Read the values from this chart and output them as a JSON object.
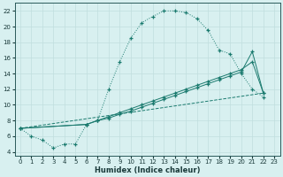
{
  "line1_x": [
    0,
    1,
    2,
    3,
    4,
    5,
    6,
    7,
    8,
    9,
    10,
    11,
    12,
    13,
    14,
    15,
    16,
    17,
    18,
    19,
    20,
    21,
    22
  ],
  "line1_y": [
    7.0,
    6.0,
    5.5,
    4.5,
    5.0,
    5.0,
    7.5,
    8.0,
    12.0,
    15.5,
    18.5,
    20.5,
    21.3,
    22.0,
    22.0,
    21.8,
    21.0,
    19.5,
    17.0,
    16.5,
    14.0,
    12.0,
    11.0
  ],
  "line2_x": [
    0,
    6,
    7,
    8,
    9,
    10,
    11,
    12,
    13,
    14,
    15,
    16,
    17,
    18,
    19,
    20,
    21,
    22
  ],
  "line2_y": [
    7.0,
    7.5,
    8.0,
    8.5,
    9.0,
    9.5,
    10.0,
    10.5,
    11.0,
    11.5,
    12.0,
    12.5,
    13.0,
    13.5,
    14.0,
    14.5,
    15.5,
    11.5
  ],
  "line3_x": [
    0,
    6,
    7,
    8,
    9,
    10,
    11,
    12,
    13,
    14,
    15,
    16,
    17,
    18,
    19,
    20,
    21,
    22
  ],
  "line3_y": [
    7.0,
    7.5,
    8.0,
    8.3,
    8.8,
    9.2,
    9.7,
    10.2,
    10.7,
    11.2,
    11.7,
    12.2,
    12.7,
    13.2,
    13.7,
    14.2,
    16.8,
    11.5
  ],
  "line4_x": [
    0,
    22
  ],
  "line4_y": [
    7.0,
    11.5
  ],
  "line_color": "#1a7a6e",
  "bg_color": "#d8f0f0",
  "grid_color": "#c0dede",
  "xlabel": "Humidex (Indice chaleur)",
  "xlim": [
    -0.5,
    23.5
  ],
  "ylim": [
    3.5,
    23
  ],
  "xticks": [
    0,
    1,
    2,
    3,
    4,
    5,
    6,
    7,
    8,
    9,
    10,
    11,
    12,
    13,
    14,
    15,
    16,
    17,
    18,
    19,
    20,
    21,
    22,
    23
  ],
  "yticks": [
    4,
    6,
    8,
    10,
    12,
    14,
    16,
    18,
    20,
    22
  ],
  "axis_fontsize": 6.0
}
